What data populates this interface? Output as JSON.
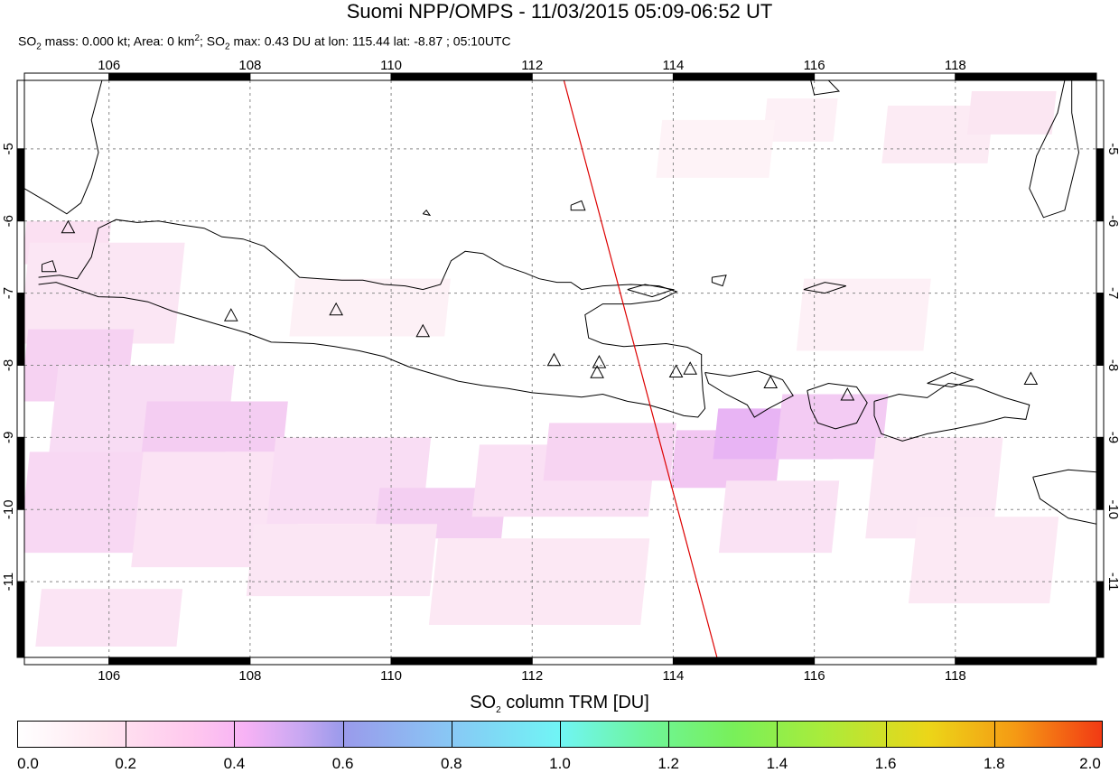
{
  "title": "Suomi NPP/OMPS - 11/03/2015 05:09-06:52 UT",
  "subtitle": {
    "p1": "SO",
    "p1_sub": "2",
    "p2": " mass: 0.000 kt; Area: 0 km",
    "p2_sup": "2",
    "p3": "; SO",
    "p3_sub": "2",
    "p4": " max: 0.43 DU at lon: 115.44 lat: -8.87 ; 05:10UTC"
  },
  "map": {
    "lon_range": [
      104.8,
      120.0
    ],
    "lat_range": [
      -12.05,
      -4.05
    ],
    "lon_ticks": [
      "106",
      "108",
      "110",
      "112",
      "114",
      "116",
      "118"
    ],
    "lat_ticks": [
      "-5",
      "-6",
      "-7",
      "-8",
      "-9",
      "-10",
      "-11"
    ],
    "colors": {
      "coast": "#000000",
      "track": "#dd0000",
      "grid": "#888888"
    },
    "orbit_track": [
      [
        112.45,
        -4.05
      ],
      [
        114.62,
        -12.05
      ]
    ],
    "volcanoes": [
      [
        105.42,
        -6.1
      ],
      [
        107.73,
        -7.32
      ],
      [
        109.22,
        -7.24
      ],
      [
        110.45,
        -7.54
      ],
      [
        112.31,
        -7.94
      ],
      [
        112.95,
        -7.97
      ],
      [
        112.92,
        -8.11
      ],
      [
        114.04,
        -8.1
      ],
      [
        114.24,
        -8.06
      ],
      [
        115.38,
        -8.25
      ],
      [
        116.47,
        -8.42
      ],
      [
        119.07,
        -8.2
      ]
    ],
    "so2_cells": [
      [
        104.8,
        -6.6,
        1.2,
        0.6,
        "#fbe0f2"
      ],
      [
        104.8,
        -7.7,
        2.2,
        1.4,
        "#fbe6f4"
      ],
      [
        104.8,
        -8.5,
        1.5,
        1.0,
        "#f6d2f2"
      ],
      [
        105.2,
        -9.5,
        2.5,
        1.5,
        "#f8dcf4"
      ],
      [
        106.5,
        -9.2,
        2.0,
        0.7,
        "#f4cdf2"
      ],
      [
        104.8,
        -10.6,
        1.8,
        1.4,
        "#f8d8f3"
      ],
      [
        106.4,
        -10.8,
        2.3,
        1.6,
        "#fbe3f4"
      ],
      [
        108.3,
        -10.2,
        2.2,
        1.2,
        "#f9ddf4"
      ],
      [
        109.8,
        -10.4,
        1.8,
        0.7,
        "#f4cff2"
      ],
      [
        111.2,
        -10.1,
        2.5,
        1.0,
        "#fae0f4"
      ],
      [
        108.0,
        -11.2,
        2.6,
        1.0,
        "#fbe6f4"
      ],
      [
        105.0,
        -11.9,
        2.0,
        0.8,
        "#fbe4f4"
      ],
      [
        110.6,
        -11.6,
        3.0,
        1.2,
        "#fce8f4"
      ],
      [
        112.2,
        -9.6,
        1.8,
        0.8,
        "#f7d4f2"
      ],
      [
        114.0,
        -9.7,
        1.5,
        0.8,
        "#f2c6f2"
      ],
      [
        114.6,
        -9.3,
        1.7,
        0.7,
        "#e8b4f4"
      ],
      [
        115.5,
        -9.3,
        1.5,
        0.9,
        "#f3cbf3"
      ],
      [
        114.7,
        -10.6,
        1.6,
        1.0,
        "#fae2f4"
      ],
      [
        116.8,
        -10.4,
        1.8,
        1.4,
        "#fbe7f4"
      ],
      [
        117.4,
        -11.3,
        2.0,
        1.2,
        "#fce9f4"
      ],
      [
        115.8,
        -7.8,
        1.8,
        1.0,
        "#fdf0f6"
      ],
      [
        117.0,
        -5.2,
        1.5,
        0.8,
        "#fcebf4"
      ],
      [
        118.2,
        -4.8,
        1.2,
        0.6,
        "#fbe6f2"
      ],
      [
        115.3,
        -4.9,
        1.0,
        0.6,
        "#fdf0f6"
      ],
      [
        108.6,
        -7.6,
        2.2,
        0.8,
        "#fdf1f6"
      ],
      [
        113.8,
        -5.4,
        1.6,
        0.8,
        "#fef3f7"
      ]
    ],
    "coastlines": [
      [
        [
          105.0,
          -6.88
        ],
        [
          105.25,
          -6.85
        ],
        [
          105.55,
          -6.95
        ],
        [
          105.85,
          -7.05
        ],
        [
          106.2,
          -7.06
        ],
        [
          106.55,
          -7.12
        ],
        [
          106.9,
          -7.25
        ],
        [
          107.25,
          -7.35
        ],
        [
          107.6,
          -7.45
        ],
        [
          107.95,
          -7.55
        ],
        [
          108.3,
          -7.68
        ],
        [
          108.65,
          -7.69
        ],
        [
          108.9,
          -7.7
        ],
        [
          109.2,
          -7.74
        ],
        [
          109.55,
          -7.8
        ],
        [
          109.9,
          -7.88
        ],
        [
          110.25,
          -8.02
        ],
        [
          110.6,
          -8.12
        ],
        [
          110.95,
          -8.22
        ],
        [
          111.3,
          -8.28
        ],
        [
          111.65,
          -8.32
        ],
        [
          112.0,
          -8.38
        ],
        [
          112.35,
          -8.41
        ],
        [
          112.7,
          -8.44
        ],
        [
          113.0,
          -8.4
        ],
        [
          113.35,
          -8.5
        ],
        [
          113.65,
          -8.55
        ],
        [
          113.9,
          -8.62
        ],
        [
          114.15,
          -8.7
        ],
        [
          114.35,
          -8.72
        ],
        [
          114.45,
          -8.6
        ],
        [
          114.42,
          -8.35
        ],
        [
          114.4,
          -8.05
        ],
        [
          114.4,
          -7.85
        ],
        [
          114.2,
          -7.75
        ],
        [
          113.9,
          -7.7
        ],
        [
          113.6,
          -7.72
        ],
        [
          113.3,
          -7.74
        ],
        [
          113.0,
          -7.7
        ],
        [
          112.8,
          -7.62
        ],
        [
          112.75,
          -7.3
        ],
        [
          113.0,
          -7.15
        ],
        [
          113.4,
          -7.15
        ],
        [
          113.8,
          -7.1
        ],
        [
          114.05,
          -6.98
        ],
        [
          113.8,
          -6.9
        ],
        [
          113.4,
          -6.88
        ],
        [
          113.0,
          -6.9
        ],
        [
          112.7,
          -6.95
        ],
        [
          112.55,
          -6.85
        ],
        [
          112.35,
          -6.85
        ],
        [
          112.1,
          -6.8
        ],
        [
          111.9,
          -6.72
        ],
        [
          111.6,
          -6.62
        ],
        [
          111.3,
          -6.45
        ],
        [
          111.05,
          -6.42
        ],
        [
          110.85,
          -6.55
        ],
        [
          110.7,
          -6.88
        ],
        [
          110.45,
          -6.95
        ],
        [
          110.2,
          -6.9
        ],
        [
          109.9,
          -6.88
        ],
        [
          109.6,
          -6.82
        ],
        [
          109.3,
          -6.82
        ],
        [
          109.0,
          -6.8
        ],
        [
          108.7,
          -6.78
        ],
        [
          108.45,
          -6.55
        ],
        [
          108.2,
          -6.35
        ],
        [
          107.9,
          -6.25
        ],
        [
          107.6,
          -6.22
        ],
        [
          107.35,
          -6.1
        ],
        [
          107.0,
          -6.05
        ],
        [
          106.7,
          -6.0
        ],
        [
          106.4,
          -6.02
        ],
        [
          106.1,
          -5.98
        ],
        [
          105.85,
          -6.1
        ],
        [
          105.75,
          -6.5
        ],
        [
          105.55,
          -6.8
        ],
        [
          105.3,
          -6.75
        ],
        [
          105.0,
          -6.78
        ]
      ],
      [
        [
          114.45,
          -8.1
        ],
        [
          114.8,
          -8.15
        ],
        [
          115.2,
          -8.08
        ],
        [
          115.55,
          -8.2
        ],
        [
          115.7,
          -8.42
        ],
        [
          115.35,
          -8.6
        ],
        [
          115.15,
          -8.72
        ],
        [
          115.05,
          -8.55
        ],
        [
          114.75,
          -8.4
        ],
        [
          114.5,
          -8.25
        ],
        [
          114.45,
          -8.1
        ]
      ],
      [
        [
          115.9,
          -8.35
        ],
        [
          116.2,
          -8.25
        ],
        [
          116.6,
          -8.3
        ],
        [
          116.75,
          -8.52
        ],
        [
          116.6,
          -8.8
        ],
        [
          116.3,
          -8.88
        ],
        [
          116.05,
          -8.8
        ],
        [
          115.95,
          -8.6
        ],
        [
          115.9,
          -8.35
        ]
      ],
      [
        [
          116.85,
          -8.5
        ],
        [
          117.2,
          -8.4
        ],
        [
          117.6,
          -8.45
        ],
        [
          117.9,
          -8.25
        ],
        [
          118.3,
          -8.3
        ],
        [
          118.7,
          -8.45
        ],
        [
          119.05,
          -8.55
        ],
        [
          119.0,
          -8.75
        ],
        [
          118.7,
          -8.72
        ],
        [
          118.4,
          -8.8
        ],
        [
          118.0,
          -8.88
        ],
        [
          117.6,
          -8.95
        ],
        [
          117.25,
          -9.05
        ],
        [
          116.95,
          -8.95
        ],
        [
          116.85,
          -8.7
        ],
        [
          116.85,
          -8.5
        ]
      ],
      [
        [
          117.6,
          -8.25
        ],
        [
          117.95,
          -8.1
        ],
        [
          118.25,
          -8.2
        ],
        [
          117.95,
          -8.3
        ],
        [
          117.6,
          -8.25
        ]
      ],
      [
        [
          119.1,
          -9.55
        ],
        [
          119.6,
          -9.45
        ],
        [
          120.0,
          -9.48
        ],
        [
          120.0,
          -10.2
        ],
        [
          119.6,
          -10.12
        ],
        [
          119.2,
          -9.85
        ],
        [
          119.1,
          -9.55
        ]
      ],
      [
        [
          113.35,
          -6.95
        ],
        [
          113.6,
          -6.88
        ],
        [
          114.0,
          -6.95
        ],
        [
          113.7,
          -7.05
        ],
        [
          113.35,
          -6.95
        ]
      ],
      [
        [
          114.55,
          -6.78
        ],
        [
          114.75,
          -6.75
        ],
        [
          114.7,
          -6.9
        ],
        [
          114.55,
          -6.85
        ],
        [
          114.55,
          -6.78
        ]
      ],
      [
        [
          115.85,
          -6.95
        ],
        [
          116.15,
          -6.85
        ],
        [
          116.45,
          -6.9
        ],
        [
          116.15,
          -7.0
        ],
        [
          115.85,
          -6.95
        ]
      ],
      [
        [
          110.45,
          -5.9
        ],
        [
          110.5,
          -5.85
        ],
        [
          110.55,
          -5.92
        ],
        [
          110.45,
          -5.9
        ]
      ],
      [
        [
          112.55,
          -5.78
        ],
        [
          112.7,
          -5.72
        ],
        [
          112.75,
          -5.85
        ],
        [
          112.55,
          -5.85
        ],
        [
          112.55,
          -5.78
        ]
      ],
      [
        [
          119.35,
          -4.05
        ],
        [
          119.55,
          -4.05
        ],
        [
          119.45,
          -4.5
        ],
        [
          119.15,
          -5.1
        ],
        [
          119.05,
          -5.55
        ],
        [
          119.25,
          -5.95
        ],
        [
          119.55,
          -5.85
        ],
        [
          119.75,
          -5.05
        ],
        [
          119.65,
          -4.5
        ],
        [
          119.65,
          -4.05
        ]
      ],
      [
        [
          115.95,
          -4.05
        ],
        [
          116.2,
          -4.05
        ],
        [
          116.35,
          -4.2
        ],
        [
          116.0,
          -4.25
        ],
        [
          115.95,
          -4.05
        ]
      ],
      [
        [
          104.8,
          -5.55
        ],
        [
          105.15,
          -5.75
        ],
        [
          105.4,
          -5.9
        ],
        [
          105.6,
          -5.75
        ],
        [
          105.75,
          -5.4
        ],
        [
          105.85,
          -5.05
        ],
        [
          105.75,
          -4.6
        ],
        [
          105.9,
          -4.05
        ]
      ],
      [
        [
          105.05,
          -6.6
        ],
        [
          105.2,
          -6.55
        ],
        [
          105.25,
          -6.7
        ],
        [
          105.05,
          -6.7
        ],
        [
          105.05,
          -6.6
        ]
      ]
    ]
  },
  "colorbar": {
    "title_pre": "SO",
    "title_sub": "2",
    "title_post": " column TRM [DU]",
    "ticks": [
      "0.0",
      "0.2",
      "0.4",
      "0.6",
      "0.8",
      "1.0",
      "1.2",
      "1.4",
      "1.6",
      "1.8",
      "2.0"
    ],
    "range": [
      0.0,
      2.0
    ]
  }
}
